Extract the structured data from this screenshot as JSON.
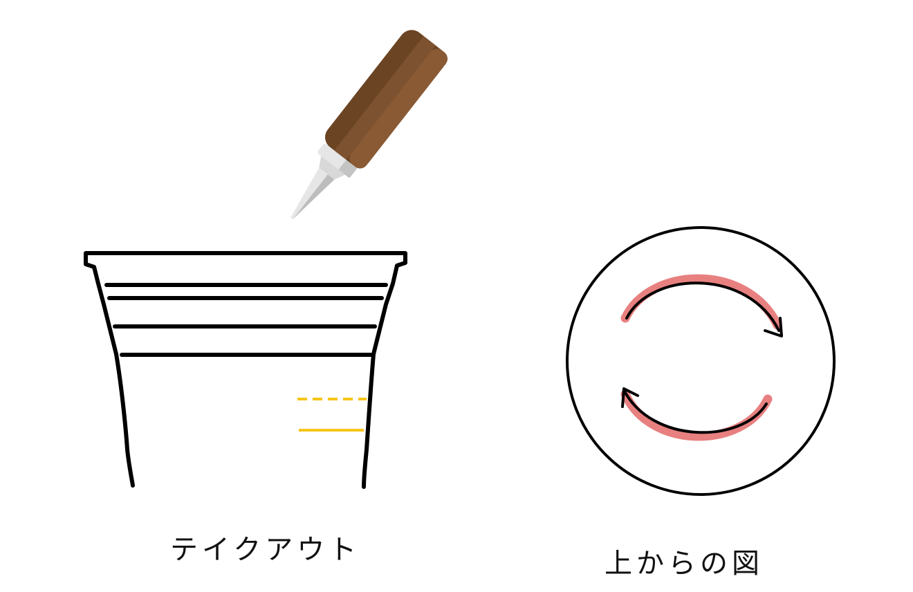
{
  "captions": {
    "left": "テイクアウト",
    "right": "上からの図"
  },
  "colors": {
    "bottle_dark": "#6b4423",
    "bottle_mid": "#7d5230",
    "bottle_light": "#8a5a34",
    "nozzle_white": "#e6e6e6",
    "nozzle_grey": "#c4c4c4",
    "cup_outline": "#000000",
    "guide_yellow": "#f5c518",
    "arrow_highlight": "#e88080",
    "arrow_line": "#000000"
  },
  "icons": {
    "bottle": "sauce-squeeze-bottle-icon",
    "cup": "takeout-cup-icon",
    "top_view": "top-view-circle-icon",
    "rotation": "clockwise-rotation-arrows-icon"
  }
}
